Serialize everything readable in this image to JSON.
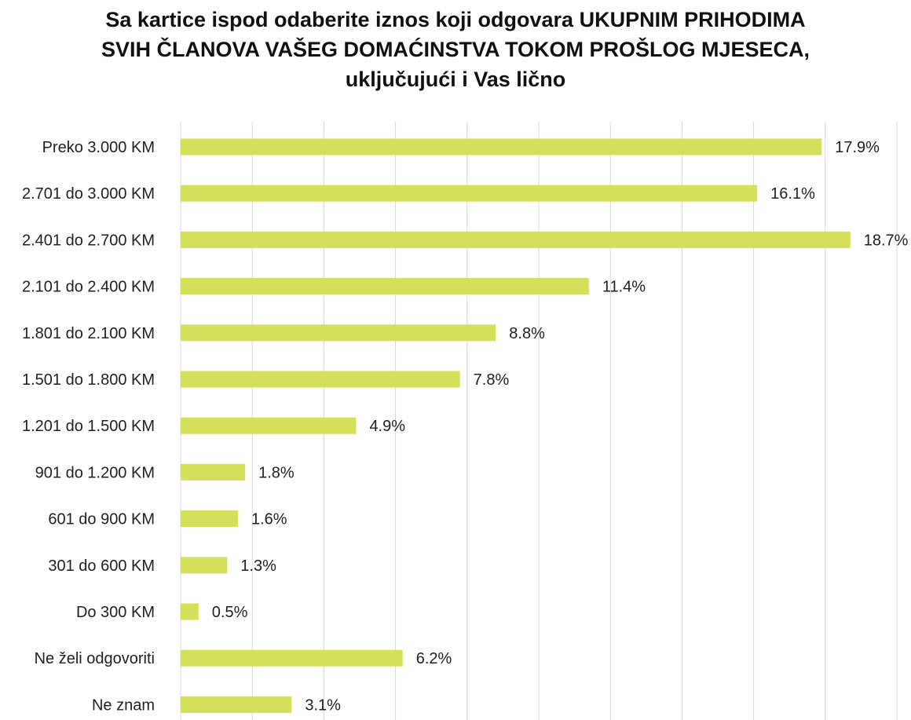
{
  "chart_data": {
    "type": "bar",
    "orientation": "horizontal",
    "title_lines": [
      "Sa kartice ispod odaberite iznos koji odgovara UKUPNIM PRIHODIMA",
      "SVIH ČLANOVA VAŠEG DOMAĆINSTVA TOKOM PROŠLOG MJESECA,",
      "uključujući i Vas lično"
    ],
    "categories": [
      "Preko 3.000 KM",
      "2.701 do 3.000 KM",
      "2.401 do 2.700 KM",
      "2.101 do 2.400 KM",
      "1.801 do 2.100 KM",
      "1.501 do 1.800 KM",
      "1.201 do 1.500 KM",
      "901 do 1.200 KM",
      "601 do 900 KM",
      "301 do 600 KM",
      "Do 300 KM",
      "Ne želi odgovoriti",
      "Ne znam"
    ],
    "values": [
      17.9,
      16.1,
      18.7,
      11.4,
      8.8,
      7.8,
      4.9,
      1.8,
      1.6,
      1.3,
      0.5,
      6.2,
      3.1
    ],
    "value_labels": [
      "17.9%",
      "16.1%",
      "18.7%",
      "11.4%",
      "8.8%",
      "7.8%",
      "4.9%",
      "1.8%",
      "1.6%",
      "1.3%",
      "0.5%",
      "6.2%",
      "3.1%"
    ],
    "xlim": [
      0,
      20
    ],
    "grid": true,
    "bar_color": "#d4df5a",
    "grid_color": "#d9d9d9"
  }
}
